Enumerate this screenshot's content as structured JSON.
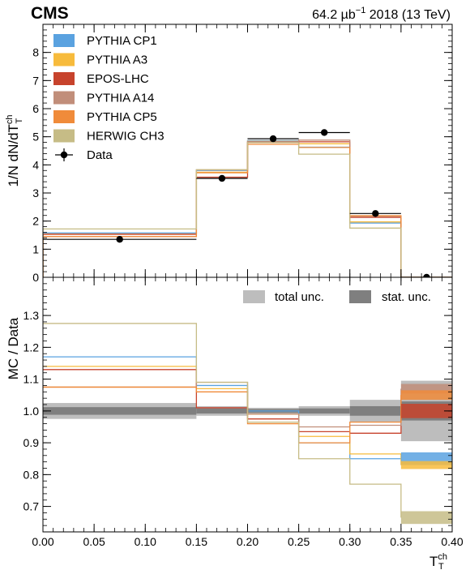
{
  "header": {
    "experiment": "CMS",
    "lumi_prefix": "64.2 µb",
    "lumi_exp": "−1",
    "lumi_suffix": " 2018 (13 TeV)"
  },
  "axes": {
    "top_ylabel_main": "1/N dN/dT",
    "top_ylabel_sup": "ch",
    "top_ylabel_sub": "T",
    "bottom_ylabel": "MC / Data",
    "xlabel_main": "T",
    "xlabel_sup": "ch",
    "xlabel_sub": "T"
  },
  "colors": {
    "total_unc": "#bdbdbd",
    "stat_unc": "#7f7f7f",
    "data": "#000000"
  },
  "chart_data": {
    "type": "histogram",
    "bins": [
      0.0,
      0.15,
      0.2,
      0.25,
      0.3,
      0.35,
      0.4
    ],
    "xlim": [
      0.0,
      0.4
    ],
    "xticks": [
      0.0,
      0.05,
      0.1,
      0.15,
      0.2,
      0.25,
      0.3,
      0.35,
      0.4
    ],
    "xtick_labels": [
      "0.00",
      "0.05",
      "0.10",
      "0.15",
      "0.20",
      "0.25",
      "0.30",
      "0.35",
      "0.40"
    ],
    "top_ylim": [
      0,
      9
    ],
    "top_yticks": [
      0,
      1,
      2,
      3,
      4,
      5,
      6,
      7,
      8
    ],
    "top_ytick_labels": [
      "0",
      "1",
      "2",
      "3",
      "4",
      "5",
      "6",
      "7",
      "8"
    ],
    "ratio_ylim": [
      0.62,
      1.42
    ],
    "ratio_yticks": [
      0.7,
      0.8,
      0.9,
      1.0,
      1.1,
      1.2,
      1.3
    ],
    "ratio_ytick_labels": [
      "0.7",
      "0.8",
      "0.9",
      "1.0",
      "1.1",
      "1.2",
      "1.3"
    ],
    "data": {
      "name": "Data",
      "x": [
        0.075,
        0.175,
        0.225,
        0.275,
        0.325,
        0.375
      ],
      "values": [
        1.35,
        3.52,
        4.93,
        5.15,
        2.27,
        0.0
      ],
      "xerr": [
        0.075,
        0.025,
        0.025,
        0.025,
        0.025,
        0.025
      ]
    },
    "series": [
      {
        "name": "PYTHIA CP1",
        "color": "#5aa2e0",
        "values": [
          1.58,
          3.8,
          4.86,
          4.63,
          1.93,
          0.0
        ],
        "ratio": [
          1.17,
          1.08,
          1.0,
          0.9,
          0.85,
          0.85
        ]
      },
      {
        "name": "PYTHIA A3",
        "color": "#f7bb3c",
        "values": [
          1.54,
          3.74,
          4.84,
          4.75,
          1.97,
          0.0
        ],
        "ratio": [
          1.14,
          1.07,
          0.99,
          0.92,
          0.865,
          0.83
        ]
      },
      {
        "name": "EPOS-LHC",
        "color": "#c7432c",
        "values": [
          1.53,
          3.56,
          4.8,
          4.82,
          2.13,
          0.0
        ],
        "ratio": [
          1.13,
          1.01,
          0.975,
          0.935,
          0.93,
          1.0
        ]
      },
      {
        "name": "PYTHIA A14",
        "color": "#c18e7a",
        "values": [
          1.45,
          3.82,
          4.83,
          4.88,
          2.17,
          0.0
        ],
        "ratio": [
          1.075,
          1.09,
          0.99,
          0.95,
          0.955,
          1.07
        ]
      },
      {
        "name": "PYTHIA CP5",
        "color": "#f08b3a",
        "values": [
          1.45,
          3.72,
          4.73,
          4.62,
          2.19,
          0.0
        ],
        "ratio": [
          1.075,
          1.06,
          0.96,
          0.9,
          0.965,
          1.05
        ]
      },
      {
        "name": "HERWIG CH3",
        "color": "#c6bc86",
        "values": [
          1.72,
          3.83,
          4.79,
          4.38,
          1.75,
          0.0
        ],
        "ratio": [
          1.275,
          1.09,
          0.965,
          0.85,
          0.77,
          0.665
        ]
      }
    ],
    "ratio_last_bin_band_halfwidth": [
      0.04,
      0.025,
      0.045,
      0.03,
      0.03,
      0.04
    ],
    "total_unc": [
      0.025,
      0.015,
      0.01,
      0.015,
      0.035,
      0.095
    ],
    "stat_unc": [
      0.012,
      0.008,
      0.006,
      0.008,
      0.015,
      0.03
    ],
    "legend_top": {
      "placement": "top-left"
    },
    "legend_ratio": {
      "placement": "top-right",
      "total_label": "total unc.",
      "stat_label": "stat. unc."
    }
  }
}
